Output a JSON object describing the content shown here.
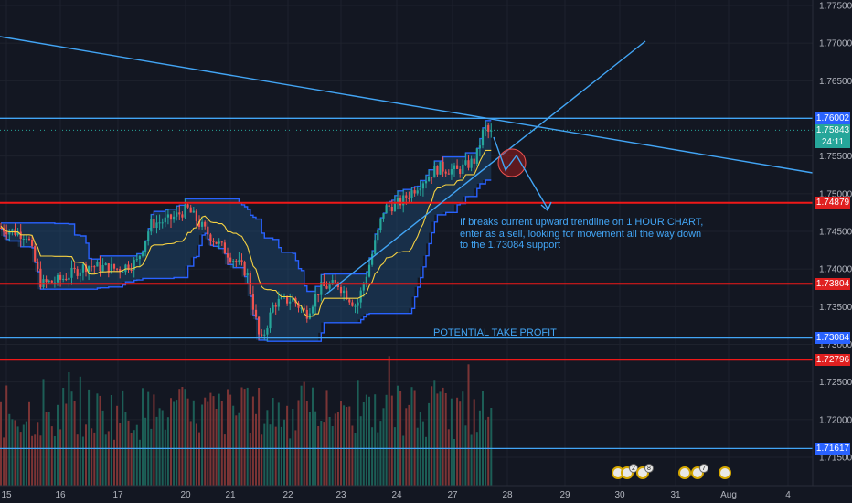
{
  "chart_data": {
    "type": "candlestick",
    "instrument_timeframe_note": "1 HOUR CHART",
    "y_axis": {
      "range": [
        1.7125,
        1.7775
      ],
      "ticks": [
        "1.77500",
        "1.77000",
        "1.76500",
        "1.75500",
        "1.75000",
        "1.74500",
        "1.74000",
        "1.73500",
        "1.73000",
        "1.72500",
        "1.72000",
        "1.71500"
      ]
    },
    "x_axis": {
      "ticks": [
        "15",
        "16",
        "17",
        "20",
        "21",
        "22",
        "23",
        "24",
        "27",
        "28",
        "29",
        "30",
        "31",
        "Aug",
        "4"
      ]
    },
    "price_tags": [
      {
        "value": "1.76002",
        "price": 1.76002,
        "bg": "#2962ff"
      },
      {
        "value": "1.75843",
        "price": 1.75843,
        "bg": "#26a69a"
      },
      {
        "value": "24:11",
        "price": 1.7568,
        "bg": "#26a69a"
      },
      {
        "value": "1.74879",
        "price": 1.74879,
        "bg": "#e02020"
      },
      {
        "value": "1.73804",
        "price": 1.73804,
        "bg": "#e02020"
      },
      {
        "value": "1.73084",
        "price": 1.73084,
        "bg": "#2962ff"
      },
      {
        "value": "1.72796",
        "price": 1.72796,
        "bg": "#e02020"
      },
      {
        "value": "1.71617",
        "price": 1.71617,
        "bg": "#2962ff"
      }
    ],
    "horizontal_levels": [
      {
        "price": 1.76002,
        "color": "#42a5f5"
      },
      {
        "price": 1.74879,
        "color": "#f01818"
      },
      {
        "price": 1.73804,
        "color": "#f01818"
      },
      {
        "price": 1.73084,
        "color": "#42a5f5"
      },
      {
        "price": 1.72796,
        "color": "#f01818"
      },
      {
        "price": 1.71617,
        "color": "#42a5f5"
      }
    ],
    "current_price": 1.75843,
    "colors": {
      "up": "#26a69a",
      "down": "#ef5350",
      "channel": "#2962ff",
      "channel_fill": "#1f4e79",
      "midline": "#f5d142",
      "annotation": "#42a5f5",
      "support_resistance": "#f01818"
    }
  },
  "annotations": {
    "trade_note": "If breaks current upward trendline on 1 HOUR CHART, enter as a sell, looking for movement all the way down to the 1.73084 support",
    "take_profit": "POTENTIAL TAKE PROFIT"
  },
  "events": [
    {
      "icon": "flag-icon",
      "badge": ""
    },
    {
      "icon": "flag-icon",
      "badge": "2"
    },
    {
      "icon": "flag-icon",
      "badge": "8"
    },
    {
      "icon": "flag-icon",
      "badge": ""
    },
    {
      "icon": "flag-icon",
      "badge": "7"
    },
    {
      "icon": "flag-icon",
      "badge": ""
    }
  ]
}
